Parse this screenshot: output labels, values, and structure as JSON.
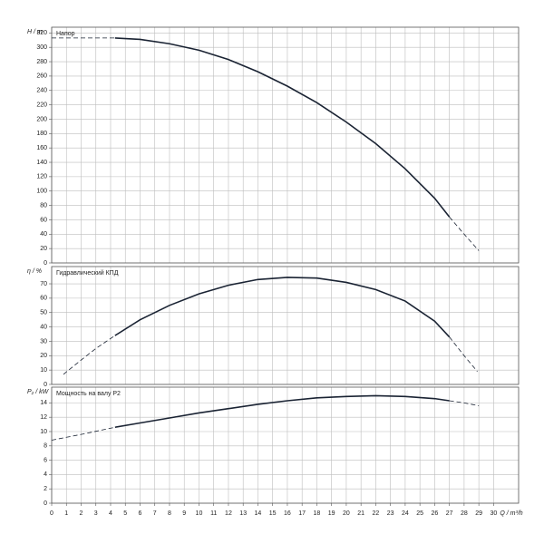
{
  "chart_data": [
    {
      "type": "line",
      "y_label": "H / m",
      "title": "Напор",
      "ylim": [
        0,
        328
      ],
      "yticks": [
        0,
        20,
        40,
        60,
        80,
        100,
        120,
        140,
        160,
        180,
        200,
        220,
        240,
        260,
        280,
        300,
        320
      ],
      "grid": true,
      "series": [
        {
          "color": "#1a2333",
          "style": "dashed",
          "x": [
            0,
            4.3
          ],
          "values": [
            313,
            313
          ]
        },
        {
          "color": "#1a2333",
          "style": "solid",
          "x": [
            4.3,
            6,
            8,
            10,
            12,
            14,
            16,
            18,
            20,
            22,
            24,
            26,
            27
          ],
          "values": [
            313,
            311,
            305,
            296,
            283,
            266,
            246,
            223,
            196,
            166,
            131,
            90,
            64
          ]
        },
        {
          "color": "#1a2333",
          "style": "dashed",
          "x": [
            27,
            28,
            29
          ],
          "values": [
            64,
            40,
            17
          ]
        }
      ]
    },
    {
      "type": "line",
      "y_label": "η / %",
      "title": "Гидравлический КПД",
      "ylim": [
        0,
        82
      ],
      "yticks": [
        0,
        10,
        20,
        30,
        40,
        50,
        60,
        70
      ],
      "grid": true,
      "series": [
        {
          "color": "#1a2333",
          "style": "dashed",
          "x": [
            0.8,
            2,
            3,
            4.3
          ],
          "values": [
            7,
            17,
            25,
            34
          ]
        },
        {
          "color": "#1a2333",
          "style": "solid",
          "x": [
            4.3,
            6,
            8,
            10,
            12,
            14,
            16,
            18,
            20,
            22,
            24,
            26,
            27
          ],
          "values": [
            34,
            45,
            55,
            63,
            69,
            73,
            74.5,
            74,
            71,
            66,
            58,
            44,
            33
          ]
        },
        {
          "color": "#1a2333",
          "style": "dashed",
          "x": [
            27,
            28,
            28.9
          ],
          "values": [
            33,
            20,
            9
          ]
        }
      ]
    },
    {
      "type": "line",
      "y_label": "P₂ / kW",
      "title": "Мощность на валу P2",
      "x_label": "Q / m³/h",
      "xlim": [
        0,
        31.7
      ],
      "xticks": [
        0,
        1,
        2,
        3,
        4,
        5,
        6,
        7,
        8,
        9,
        10,
        11,
        12,
        13,
        14,
        15,
        16,
        17,
        18,
        19,
        20,
        21,
        22,
        23,
        24,
        25,
        26,
        27,
        28,
        29,
        30
      ],
      "ylim": [
        0,
        16.2
      ],
      "yticks": [
        0,
        2,
        4,
        6,
        8,
        10,
        12,
        14
      ],
      "grid": true,
      "series": [
        {
          "color": "#1a2333",
          "style": "dashed",
          "x": [
            0,
            2,
            4.3
          ],
          "values": [
            8.8,
            9.6,
            10.6
          ]
        },
        {
          "color": "#1a2333",
          "style": "solid",
          "x": [
            4.3,
            6,
            8,
            10,
            12,
            14,
            16,
            18,
            20,
            22,
            24,
            26,
            27
          ],
          "values": [
            10.6,
            11.2,
            11.9,
            12.6,
            13.2,
            13.8,
            14.3,
            14.7,
            14.9,
            15.0,
            14.9,
            14.6,
            14.3
          ]
        },
        {
          "color": "#1a2333",
          "style": "dashed",
          "x": [
            27,
            28,
            29
          ],
          "values": [
            14.3,
            14.0,
            13.6
          ]
        }
      ]
    }
  ]
}
